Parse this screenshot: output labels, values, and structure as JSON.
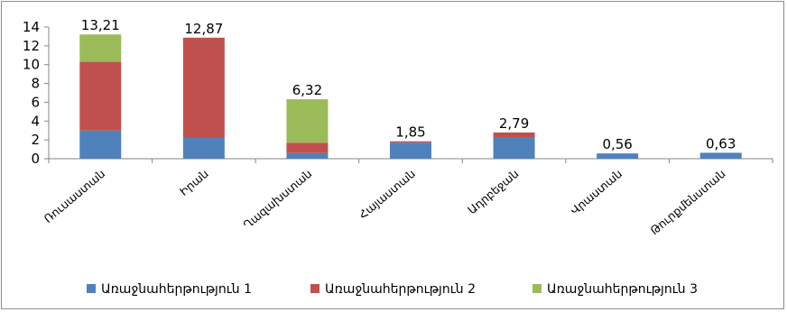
{
  "chart_data": {
    "type": "bar",
    "stacked": true,
    "categories": [
      "Ռուսաստան",
      "Իրան",
      "Ղազախստան",
      "Հայաստան",
      "Ադրբեջան",
      "Վրաստան",
      "Թուրքմենստան"
    ],
    "series": [
      {
        "name": "Առաջնահերթություն 1",
        "values": [
          3.0,
          2.2,
          0.6,
          1.7,
          2.3,
          0.56,
          0.63
        ]
      },
      {
        "name": "Առաջնահերթություն 2",
        "values": [
          7.3,
          10.67,
          1.1,
          0.15,
          0.49,
          0,
          0
        ]
      },
      {
        "name": "Առաջնահերթություն 3",
        "values": [
          2.91,
          0,
          4.62,
          0,
          0,
          0,
          0
        ]
      }
    ],
    "totals": [
      "13,21",
      "12,87",
      "6,32",
      "1,85",
      "2,79",
      "0,56",
      "0,63"
    ],
    "ylim": [
      0,
      14
    ],
    "yticks": [
      "0",
      "2",
      "4",
      "6",
      "8",
      "10",
      "12",
      "14"
    ],
    "colors": [
      "#4f81bd",
      "#c0504d",
      "#9bbb59"
    ],
    "grid": false,
    "legend_position": "bottom"
  }
}
